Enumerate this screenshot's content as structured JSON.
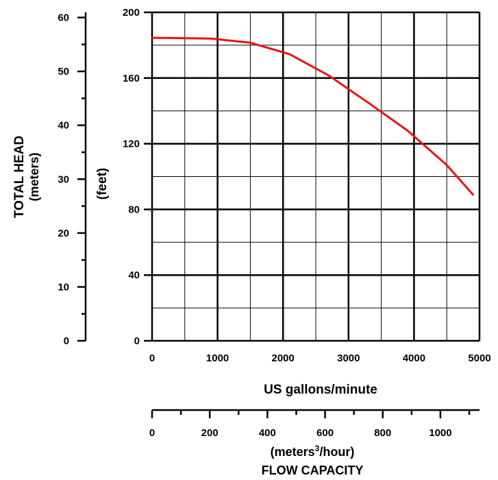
{
  "chart_data": {
    "type": "line",
    "xlabel": "US gallons/minute",
    "ylabel_feet": "(feet)",
    "ylabel_meters_title": "TOTAL HEAD",
    "ylabel_meters_unit": "(meters)",
    "x2label_unit_prefix": "(meters",
    "x2label_unit_sup": "3",
    "x2label_unit_suffix": "/hour)",
    "x2label_title": "FLOW CAPACITY",
    "xlim": [
      0,
      5000
    ],
    "ylim_feet": [
      0,
      200
    ],
    "ylim_meters": [
      0,
      60.96
    ],
    "x2lim": [
      0,
      1135.6
    ],
    "grid": true,
    "x_ticks": [
      "0",
      "1000",
      "2000",
      "3000",
      "4000",
      "5000"
    ],
    "y_ticks_feet": [
      "0",
      "40",
      "80",
      "120",
      "160",
      "200"
    ],
    "y_ticks_meters": [
      "0",
      "10",
      "20",
      "30",
      "40",
      "50",
      "60"
    ],
    "x2_ticks": [
      "0",
      "200",
      "400",
      "600",
      "800",
      "1000"
    ],
    "line_color": "#ee1111",
    "series": [
      {
        "x": [
          0,
          300,
          900,
          1500,
          2100,
          2700,
          3300,
          3900,
          4500,
          4900
        ],
        "y": [
          184.5,
          184.4,
          184,
          181.5,
          174.5,
          161.5,
          145,
          128,
          107,
          89
        ]
      }
    ]
  }
}
